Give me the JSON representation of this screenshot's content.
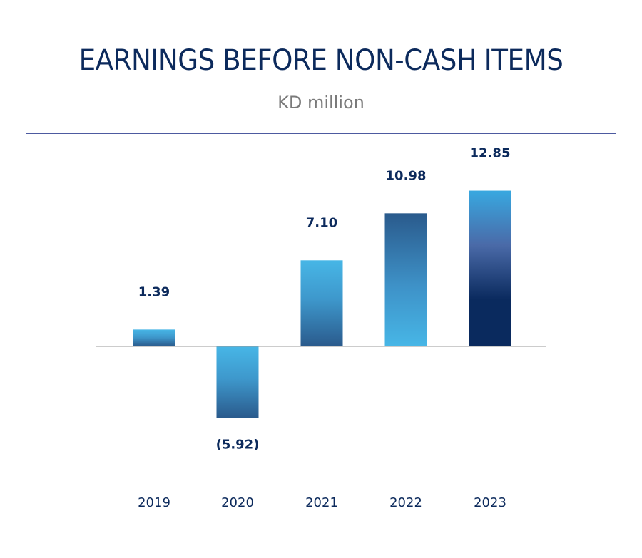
{
  "header": {
    "title": "EARNINGS BEFORE NON-CASH ITEMS",
    "subtitle": "KD million"
  },
  "colors": {
    "title": "#0c2a5c",
    "subtitle": "#7a7a7a",
    "rule": "#4d5aa0",
    "axis": "#9a9a9a",
    "bar_light": "#47b6e6",
    "bar_mid": "#2a5a8c",
    "bar_dark": "#0a2a5e"
  },
  "chart_data": {
    "type": "bar",
    "title": "EARNINGS BEFORE NON-CASH ITEMS",
    "subtitle": "KD million",
    "categories": [
      "2019",
      "2020",
      "2021",
      "2022",
      "2023"
    ],
    "values": [
      1.39,
      -5.92,
      7.1,
      10.98,
      12.85
    ],
    "value_labels": [
      "1.39",
      "(5.92)",
      "7.10",
      "10.98",
      "12.85"
    ],
    "ylim": [
      -5.92,
      12.85
    ],
    "grid": false,
    "legend": "none"
  }
}
